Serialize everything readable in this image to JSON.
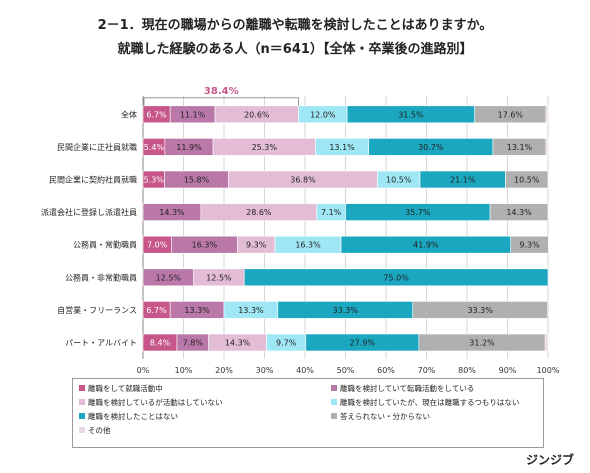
{
  "header": {
    "title_line1": "2－1．現在の職場からの離職や転職を検討したことはありますか。",
    "title_line2": "就職した経験のある人（n＝641）【全体・卒業後の進路別】"
  },
  "brand": "ジンジブ",
  "chart_data": {
    "type": "bar",
    "orientation": "horizontal",
    "stacked": true,
    "xlim": [
      0,
      100
    ],
    "xticks": [
      "0%",
      "10%",
      "20%",
      "30%",
      "40%",
      "50%",
      "60%",
      "70%",
      "80%",
      "90%",
      "100%"
    ],
    "grid": true,
    "legend_position": "bottom",
    "categories": [
      "全体",
      "民間企業に正社員就職",
      "民間企業に契約社員就職",
      "派遣会社に登録し派遣社員",
      "公務員・常勤職員",
      "公務員・非常勤職員",
      "自営業・フリーランス",
      "パート・アルバイト"
    ],
    "series": [
      {
        "name": "離職をして就職活動中",
        "color": "#c7578a",
        "values": [
          6.7,
          5.4,
          5.3,
          0,
          7.0,
          0,
          6.7,
          8.4
        ],
        "labels": [
          "6.7%",
          "5.4%",
          "5.3%",
          "",
          "7.0%",
          "",
          "6.7%",
          "8.4%"
        ]
      },
      {
        "name": "離職を検討していて転職活動をしている",
        "color": "#ba78a9",
        "values": [
          11.1,
          11.9,
          15.8,
          14.3,
          16.3,
          12.5,
          13.3,
          7.8
        ],
        "labels": [
          "11.1%",
          "11.9%",
          "15.8%",
          "14.3%",
          "16.3%",
          "12.5%",
          "13.3%",
          "7.8%"
        ]
      },
      {
        "name": "離職を検討しているが活動はしていない",
        "color": "#e3bdd6",
        "values": [
          20.6,
          25.3,
          36.8,
          28.6,
          9.3,
          12.5,
          0,
          14.3
        ],
        "labels": [
          "20.6%",
          "25.3%",
          "36.8%",
          "28.6%",
          "9.3%",
          "12.5%",
          "",
          "14.3%"
        ]
      },
      {
        "name": "離職を検討していたが、現在は離職するつもりはない",
        "color": "#9fe7f5",
        "values": [
          12.0,
          13.1,
          10.5,
          7.1,
          16.3,
          0,
          13.3,
          9.7
        ],
        "labels": [
          "12.0%",
          "13.1%",
          "10.5%",
          "7.1%",
          "16.3%",
          "",
          "13.3%",
          "9.7%"
        ]
      },
      {
        "name": "離職を検討したことはない",
        "color": "#1aa7bf",
        "values": [
          31.5,
          30.7,
          21.1,
          35.7,
          41.9,
          75.0,
          33.3,
          27.9
        ],
        "labels": [
          "31.5%",
          "30.7%",
          "21.1%",
          "35.7%",
          "41.9%",
          "75.0%",
          "33.3%",
          "27.9%"
        ]
      },
      {
        "name": "答えられない・分からない",
        "color": "#b0b0b0",
        "values": [
          17.6,
          13.1,
          10.5,
          14.3,
          9.3,
          0,
          33.3,
          31.2
        ],
        "labels": [
          "17.6%",
          "13.1%",
          "10.5%",
          "14.3%",
          "9.3%",
          "",
          "33.3%",
          "31.2%"
        ]
      },
      {
        "name": "その他",
        "color": "#ead7e6",
        "values": [
          0.5,
          0.5,
          0,
          0,
          0,
          0,
          0,
          0.7
        ],
        "labels": [
          "",
          "",
          "",
          "",
          "",
          "",
          "",
          ""
        ]
      }
    ],
    "annotation": {
      "text": "38.4%",
      "color": "#c7578a",
      "from": 0,
      "to": 38.4,
      "category": "全体"
    }
  }
}
